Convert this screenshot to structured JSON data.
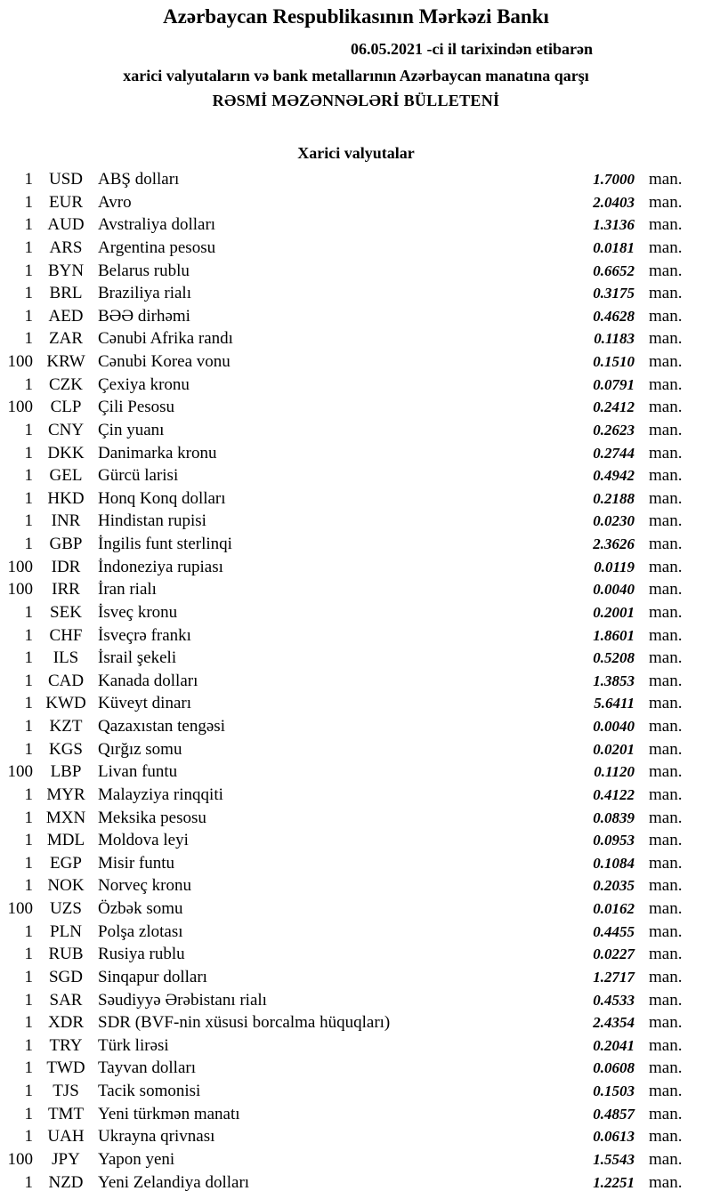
{
  "header": {
    "title": "Azərbaycan Respublikasının Mərkəzi Bankı",
    "date_line": "06.05.2021  -ci il tarixindən etibarən",
    "subtitle": "xarici valyutaların və bank metallarının Azərbaycan manatına qarşı",
    "bulletin": "RƏSMİ MƏZƏNNƏLƏRİ BÜLLETENİ"
  },
  "section_title": "Xarici valyutalar",
  "unit": "man.",
  "rates": [
    {
      "qty": "1",
      "code": "USD",
      "name": "ABŞ dolları",
      "value": "1.7000"
    },
    {
      "qty": "1",
      "code": "EUR",
      "name": "Avro",
      "value": "2.0403"
    },
    {
      "qty": "1",
      "code": "AUD",
      "name": "Avstraliya dolları",
      "value": "1.3136"
    },
    {
      "qty": "1",
      "code": "ARS",
      "name": "Argentina pesosu",
      "value": "0.0181"
    },
    {
      "qty": "1",
      "code": "BYN",
      "name": "Belarus rublu",
      "value": "0.6652"
    },
    {
      "qty": "1",
      "code": "BRL",
      "name": "Braziliya rialı",
      "value": "0.3175"
    },
    {
      "qty": "1",
      "code": "AED",
      "name": "BƏƏ dirhəmi",
      "value": "0.4628"
    },
    {
      "qty": "1",
      "code": "ZAR",
      "name": "Cənubi Afrika randı",
      "value": "0.1183"
    },
    {
      "qty": "100",
      "code": "KRW",
      "name": "Cənubi Korea vonu",
      "value": "0.1510"
    },
    {
      "qty": "1",
      "code": "CZK",
      "name": "Çexiya kronu",
      "value": "0.0791"
    },
    {
      "qty": "100",
      "code": "CLP",
      "name": "Çili Pesosu",
      "value": "0.2412"
    },
    {
      "qty": "1",
      "code": "CNY",
      "name": "Çin yuanı",
      "value": "0.2623"
    },
    {
      "qty": "1",
      "code": "DKK",
      "name": "Danimarka kronu",
      "value": "0.2744"
    },
    {
      "qty": "1",
      "code": "GEL",
      "name": "Gürcü larisi",
      "value": "0.4942"
    },
    {
      "qty": "1",
      "code": "HKD",
      "name": "Honq Konq dolları",
      "value": "0.2188"
    },
    {
      "qty": "1",
      "code": "INR",
      "name": "Hindistan rupisi",
      "value": "0.0230"
    },
    {
      "qty": "1",
      "code": "GBP",
      "name": "İngilis funt sterlinqi",
      "value": "2.3626"
    },
    {
      "qty": "100",
      "code": "IDR",
      "name": "İndoneziya rupiası",
      "value": "0.0119"
    },
    {
      "qty": "100",
      "code": "IRR",
      "name": "İran rialı",
      "value": "0.0040"
    },
    {
      "qty": "1",
      "code": "SEK",
      "name": "İsveç kronu",
      "value": "0.2001"
    },
    {
      "qty": "1",
      "code": "CHF",
      "name": "İsveçrə frankı",
      "value": "1.8601"
    },
    {
      "qty": "1",
      "code": "ILS",
      "name": "İsrail şekeli",
      "value": "0.5208"
    },
    {
      "qty": "1",
      "code": "CAD",
      "name": "Kanada dolları",
      "value": "1.3853"
    },
    {
      "qty": "1",
      "code": "KWD",
      "name": "Küveyt dinarı",
      "value": "5.6411"
    },
    {
      "qty": "1",
      "code": "KZT",
      "name": "Qazaxıstan tengəsi",
      "value": "0.0040"
    },
    {
      "qty": "1",
      "code": "KGS",
      "name": "Qırğız somu",
      "value": "0.0201"
    },
    {
      "qty": "100",
      "code": "LBP",
      "name": "Livan funtu",
      "value": "0.1120"
    },
    {
      "qty": "1",
      "code": "MYR",
      "name": "Malayziya rinqqiti",
      "value": "0.4122"
    },
    {
      "qty": "1",
      "code": "MXN",
      "name": "Meksika pesosu",
      "value": "0.0839"
    },
    {
      "qty": "1",
      "code": "MDL",
      "name": "Moldova leyi",
      "value": "0.0953"
    },
    {
      "qty": "1",
      "code": "EGP",
      "name": "Misir funtu",
      "value": "0.1084"
    },
    {
      "qty": "1",
      "code": "NOK",
      "name": "Norveç kronu",
      "value": "0.2035"
    },
    {
      "qty": "100",
      "code": "UZS",
      "name": "Özbək somu",
      "value": "0.0162"
    },
    {
      "qty": "1",
      "code": "PLN",
      "name": "Polşa zlotası",
      "value": "0.4455"
    },
    {
      "qty": "1",
      "code": "RUB",
      "name": "Rusiya rublu",
      "value": "0.0227"
    },
    {
      "qty": "1",
      "code": "SGD",
      "name": "Sinqapur dolları",
      "value": "1.2717"
    },
    {
      "qty": "1",
      "code": "SAR",
      "name": "Səudiyyə Ərəbistanı rialı",
      "value": "0.4533"
    },
    {
      "qty": "1",
      "code": "XDR",
      "name": "SDR (BVF-nin xüsusi borcalma hüquqları)",
      "value": "2.4354"
    },
    {
      "qty": "1",
      "code": "TRY",
      "name": "Türk lirəsi",
      "value": "0.2041"
    },
    {
      "qty": "1",
      "code": "TWD",
      "name": "Tayvan dolları",
      "value": "0.0608"
    },
    {
      "qty": "1",
      "code": "TJS",
      "name": "Tacik somonisi",
      "value": "0.1503"
    },
    {
      "qty": "1",
      "code": "TMT",
      "name": "Yeni türkmən manatı",
      "value": "0.4857"
    },
    {
      "qty": "1",
      "code": "UAH",
      "name": "Ukrayna qrivnası",
      "value": "0.0613"
    },
    {
      "qty": "100",
      "code": "JPY",
      "name": "Yapon yeni",
      "value": "1.5543"
    },
    {
      "qty": "1",
      "code": "NZD",
      "name": "Yeni Zelandiya dolları",
      "value": "1.2251"
    }
  ]
}
